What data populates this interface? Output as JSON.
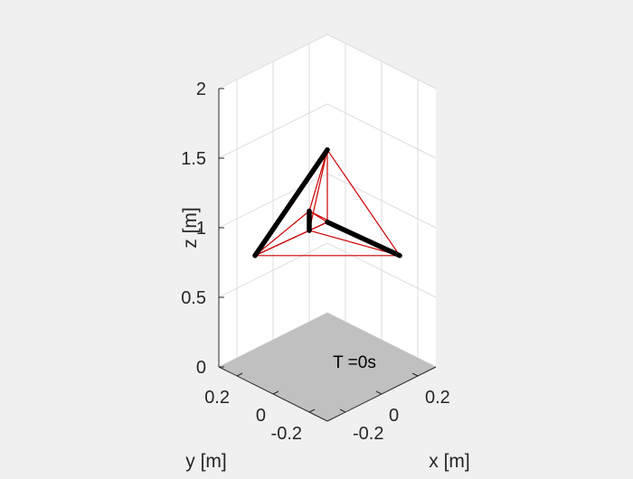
{
  "chart_data": {
    "type": "3d-line",
    "title": "",
    "axes": {
      "x": {
        "label": "x [m]",
        "ticks": [
          -0.2,
          0,
          0.2
        ],
        "tick_labels": [
          "-0.2",
          "0",
          "0.2"
        ],
        "lim": [
          -0.3,
          0.3
        ]
      },
      "y": {
        "label": "y [m]",
        "ticks": [
          -0.2,
          0,
          0.2
        ],
        "tick_labels": [
          "-0.2",
          "0",
          "0.2"
        ],
        "lim": [
          -0.3,
          0.3
        ]
      },
      "z": {
        "label": "z [m]",
        "ticks": [
          0,
          0.5,
          1,
          1.5,
          2
        ],
        "tick_labels": [
          "0",
          "0.5",
          "1",
          "1.5",
          "2"
        ],
        "lim": [
          0,
          2
        ]
      }
    },
    "grid": true,
    "nodes": [
      {
        "id": "n1",
        "x": -0.2,
        "y": -0.2,
        "z": 1.3
      },
      {
        "id": "n2",
        "x": 0.2,
        "y": 0.2,
        "z": 1.3
      },
      {
        "id": "n3",
        "x": -0.2,
        "y": 0.2,
        "z": 0.8
      },
      {
        "id": "n4",
        "x": 0.2,
        "y": -0.2,
        "z": 0.8
      },
      {
        "id": "n5",
        "x": -0.05,
        "y": 0.05,
        "z": 1.12
      },
      {
        "id": "n6",
        "x": -0.05,
        "y": 0.05,
        "z": 0.98
      }
    ],
    "bars": [
      {
        "from": "n1",
        "to": "n4",
        "color": "#000000"
      },
      {
        "from": "n2",
        "to": "n3",
        "color": "#000000"
      },
      {
        "from": "n5",
        "to": "n6",
        "color": "#000000"
      }
    ],
    "strings": [
      {
        "from": "n1",
        "to": "n2",
        "color": "#cc0000"
      },
      {
        "from": "n2",
        "to": "n4",
        "color": "#cc0000"
      },
      {
        "from": "n4",
        "to": "n3",
        "color": "#cc0000"
      },
      {
        "from": "n3",
        "to": "n1",
        "color": "#cc0000"
      },
      {
        "from": "n1",
        "to": "n5",
        "color": "#cc0000"
      },
      {
        "from": "n1",
        "to": "n6",
        "color": "#cc0000"
      },
      {
        "from": "n3",
        "to": "n5",
        "color": "#cc0000"
      },
      {
        "from": "n3",
        "to": "n6",
        "color": "#cc0000"
      },
      {
        "from": "n2",
        "to": "n5",
        "color": "#cc0000"
      },
      {
        "from": "n2",
        "to": "n6",
        "color": "#cc0000"
      },
      {
        "from": "n4",
        "to": "n5",
        "color": "#cc0000"
      },
      {
        "from": "n4",
        "to": "n6",
        "color": "#cc0000"
      }
    ],
    "ground_plane": {
      "z": 0,
      "color": "#c0c0c0"
    },
    "annotation": "T =0s"
  }
}
